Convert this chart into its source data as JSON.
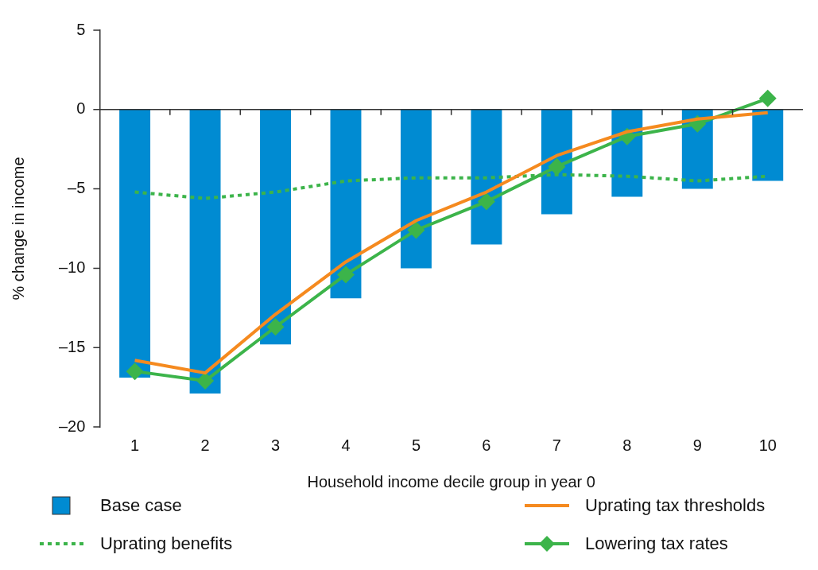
{
  "chart_data": {
    "type": "bar",
    "xlabel": "Household income decile group in year 0",
    "ylabel": "% change in income",
    "categories": [
      "1",
      "2",
      "3",
      "4",
      "5",
      "6",
      "7",
      "8",
      "9",
      "10"
    ],
    "ylim": [
      -20,
      5
    ],
    "yticks": [
      {
        "value": -20,
        "label": "–20"
      },
      {
        "value": -15,
        "label": "–15"
      },
      {
        "value": -10,
        "label": "–10"
      },
      {
        "value": -5,
        "label": "–5"
      },
      0,
      5
    ],
    "grid": false,
    "legend": "bottom",
    "ref_lines": [
      {
        "axis": "y",
        "value": 0,
        "color": "#333333"
      }
    ],
    "series": [
      {
        "name": "Base case",
        "color": "#008bd2",
        "values": [
          -16.9,
          -17.9,
          -14.8,
          -11.9,
          -10.0,
          -8.5,
          -6.6,
          -5.5,
          -5.0,
          -4.5
        ]
      },
      {
        "name": "Uprating tax thresholds",
        "type": "line",
        "color": "#f58a1f",
        "marker": "none",
        "line_style": "solid",
        "values": [
          -15.8,
          -16.6,
          -12.9,
          -9.6,
          -7.0,
          -5.2,
          -2.9,
          -1.4,
          -0.6,
          -0.2
        ]
      },
      {
        "name": "Uprating benefits",
        "type": "line",
        "color": "#3cb44a",
        "marker": "none",
        "line_style": "dotted",
        "values": [
          -5.2,
          -5.6,
          -5.2,
          -4.5,
          -4.3,
          -4.3,
          -4.1,
          -4.2,
          -4.5,
          -4.2
        ]
      },
      {
        "name": "Lowering tax rates",
        "type": "line",
        "color": "#3cb44a",
        "marker": "diamond",
        "line_style": "solid",
        "values": [
          -16.5,
          -17.1,
          -13.7,
          -10.4,
          -7.6,
          -5.8,
          -3.6,
          -1.7,
          -0.9,
          0.7
        ]
      }
    ]
  }
}
